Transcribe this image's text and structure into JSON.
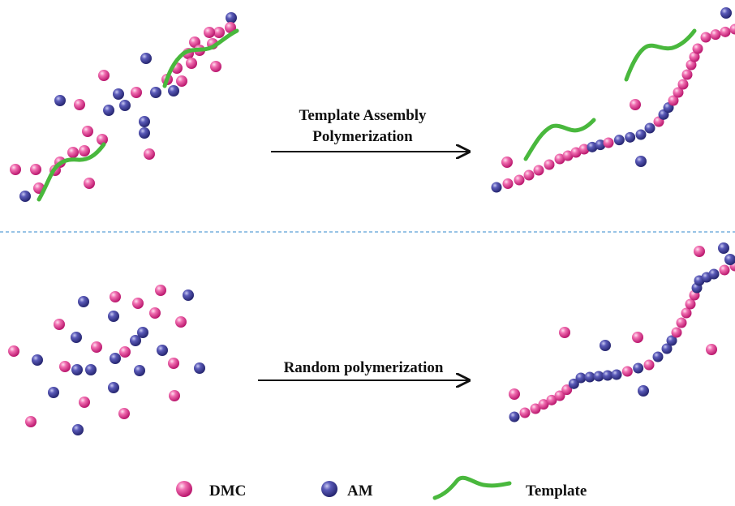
{
  "top_section": {
    "arrow_label_line1": "Template Assembly",
    "arrow_label_line2": "Polymerization"
  },
  "bottom_section": {
    "arrow_label": "Random polymerization"
  },
  "legend": {
    "items": [
      {
        "label": "DMC",
        "icon": "pink-sphere-icon"
      },
      {
        "label": "AM",
        "icon": "blue-sphere-icon"
      },
      {
        "label": "Template",
        "icon": "green-template-strand-icon"
      }
    ]
  },
  "colors": {
    "dmc": "#e0358f",
    "am": "#3f3f9a",
    "template": "#49b83d",
    "divider": "#5aa0d8"
  }
}
